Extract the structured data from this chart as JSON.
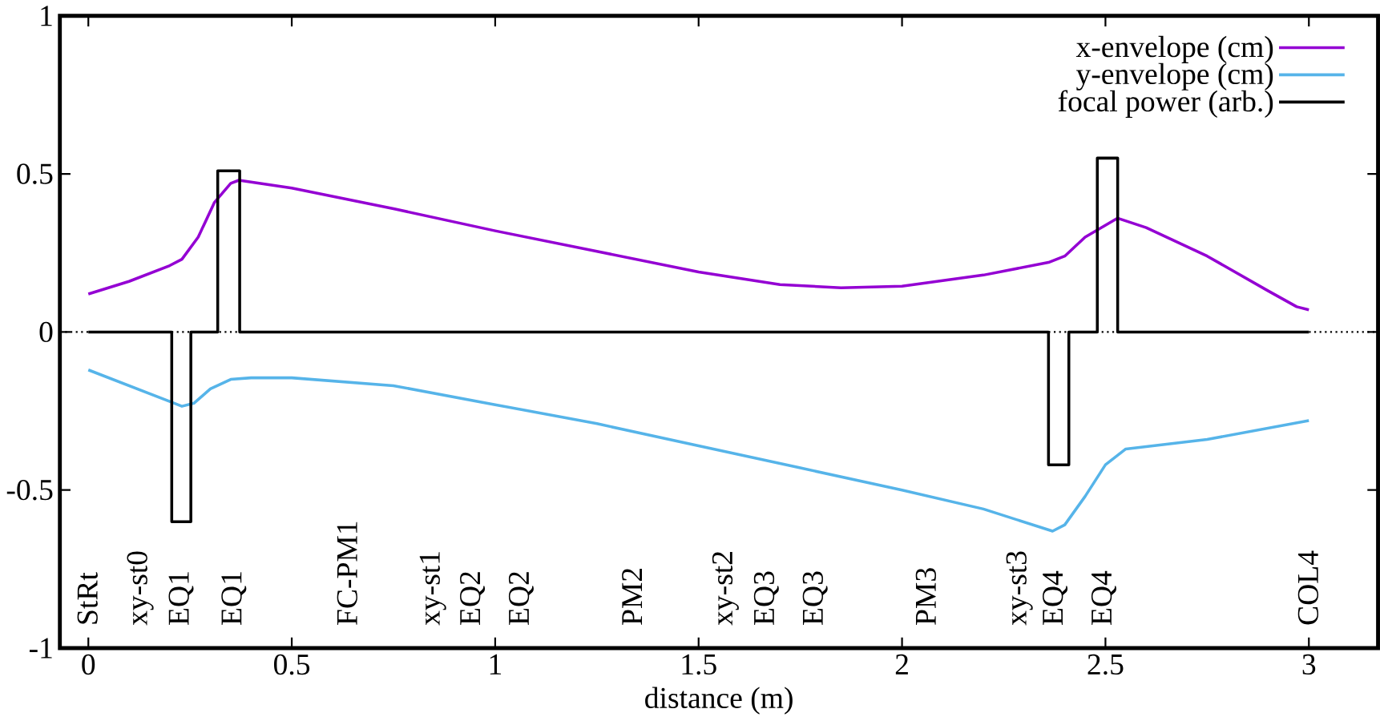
{
  "chart_data": {
    "type": "line",
    "xlabel": "distance (m)",
    "xlim": [
      -0.07,
      3.17
    ],
    "ylim": [
      -1,
      1
    ],
    "xticks": [
      0,
      0.5,
      1,
      1.5,
      2,
      2.5,
      3
    ],
    "yticks": [
      -1,
      -0.5,
      0,
      0.5,
      1
    ],
    "grid": false,
    "legend": "top right",
    "marker": "none",
    "line_style": "solid",
    "ref_lines": [
      {
        "axis": "y",
        "value": 0,
        "color": "#000000",
        "line_style": "dotted"
      }
    ],
    "series": [
      {
        "name": "x-envelope (cm)",
        "color": "#9400d3",
        "x": [
          0,
          0.1,
          0.2,
          0.23,
          0.27,
          0.31,
          0.35,
          0.37,
          0.5,
          0.75,
          1.0,
          1.25,
          1.5,
          1.7,
          1.85,
          2.0,
          2.2,
          2.36,
          2.4,
          2.45,
          2.53,
          2.6,
          2.75,
          2.9,
          2.97,
          3.0
        ],
        "values": [
          0.12,
          0.16,
          0.21,
          0.23,
          0.3,
          0.41,
          0.47,
          0.48,
          0.455,
          0.39,
          0.32,
          0.255,
          0.19,
          0.15,
          0.14,
          0.145,
          0.18,
          0.22,
          0.24,
          0.3,
          0.36,
          0.33,
          0.24,
          0.13,
          0.08,
          0.07
        ]
      },
      {
        "name": "y-envelope (cm)",
        "color": "#56b4e9",
        "x": [
          0,
          0.1,
          0.2,
          0.23,
          0.26,
          0.3,
          0.35,
          0.4,
          0.5,
          0.75,
          1.0,
          1.25,
          1.5,
          1.75,
          2.0,
          2.2,
          2.37,
          2.4,
          2.45,
          2.5,
          2.55,
          2.75,
          3.0
        ],
        "values": [
          -0.12,
          -0.17,
          -0.22,
          -0.235,
          -0.225,
          -0.18,
          -0.15,
          -0.145,
          -0.145,
          -0.17,
          -0.23,
          -0.29,
          -0.36,
          -0.43,
          -0.5,
          -0.56,
          -0.63,
          -0.61,
          -0.52,
          -0.42,
          -0.37,
          -0.34,
          -0.28
        ]
      },
      {
        "name": "focal power (arb.)",
        "color": "#000000",
        "x": [
          0,
          0.205,
          0.205,
          0.252,
          0.252,
          0.318,
          0.318,
          0.372,
          0.372,
          2.36,
          2.36,
          2.41,
          2.41,
          2.48,
          2.48,
          2.53,
          2.53,
          3.0
        ],
        "values": [
          0,
          0,
          -0.6,
          -0.6,
          0,
          0,
          0.51,
          0.51,
          0,
          0,
          -0.42,
          -0.42,
          0,
          0,
          0.55,
          0.55,
          0,
          0
        ]
      }
    ],
    "annotations": [
      "StRt",
      "xy-st0",
      "EQ1",
      "EQ1",
      "FC-PM1",
      "xy-st1",
      "EQ2",
      "EQ2",
      "PM2",
      "xy-st2",
      "EQ3",
      "EQ3",
      "PM3",
      "xy-st3",
      "EQ4",
      "EQ4",
      "COL4"
    ]
  }
}
